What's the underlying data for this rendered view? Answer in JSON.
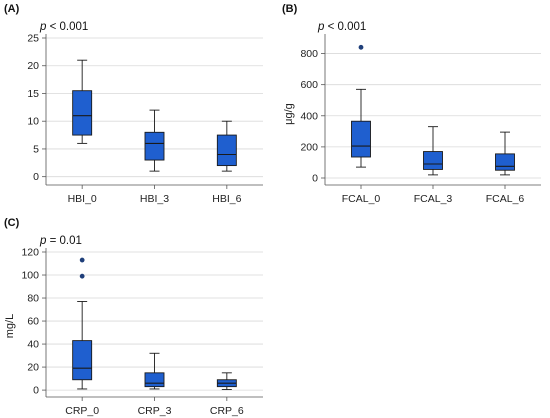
{
  "colors": {
    "box_fill": "#1f5fcf",
    "box_stroke": "#1a1a1a",
    "outlier": "#1f3f7a",
    "grid": "#d9d9d9",
    "axis": "#555555"
  },
  "chart_data": [
    {
      "type": "box",
      "panel_label": "(A)",
      "p_label": "p",
      "p_value": "< 0.001",
      "ylabel": "",
      "ylim": [
        -1.5,
        25
      ],
      "yticks": [
        0,
        5,
        10,
        15,
        20,
        25
      ],
      "grid": "horizontal",
      "categories": [
        "HBI_0",
        "HBI_3",
        "HBI_6"
      ],
      "boxes": [
        {
          "min": 6,
          "q1": 7.5,
          "median": 11,
          "q3": 15.5,
          "max": 21,
          "outliers": []
        },
        {
          "min": 1,
          "q1": 3,
          "median": 6,
          "q3": 8,
          "max": 12,
          "outliers": []
        },
        {
          "min": 1,
          "q1": 2,
          "median": 4,
          "q3": 7.5,
          "max": 10,
          "outliers": []
        }
      ]
    },
    {
      "type": "box",
      "panel_label": "(B)",
      "p_label": "p",
      "p_value": "< 0.001",
      "ylabel": "μg/g",
      "ylim": [
        -45,
        900
      ],
      "yticks": [
        0,
        200,
        400,
        600,
        800
      ],
      "grid": "horizontal",
      "categories": [
        "FCAL_0",
        "FCAL_3",
        "FCAL_6"
      ],
      "boxes": [
        {
          "min": 70,
          "q1": 135,
          "median": 205,
          "q3": 365,
          "max": 570,
          "outliers": [
            840
          ]
        },
        {
          "min": 20,
          "q1": 55,
          "median": 90,
          "q3": 170,
          "max": 330,
          "outliers": []
        },
        {
          "min": 20,
          "q1": 50,
          "median": 75,
          "q3": 155,
          "max": 295,
          "outliers": []
        }
      ]
    },
    {
      "type": "box",
      "panel_label": "(C)",
      "p_label": "p",
      "p_value": "= 0.01",
      "ylabel": "mg/L",
      "ylim": [
        -6,
        120
      ],
      "yticks": [
        0,
        20,
        40,
        60,
        80,
        100,
        120
      ],
      "grid": "horizontal",
      "categories": [
        "CRP_0",
        "CRP_3",
        "CRP_6"
      ],
      "boxes": [
        {
          "min": 1,
          "q1": 9,
          "median": 19,
          "q3": 43,
          "max": 77,
          "outliers": [
            99,
            113
          ]
        },
        {
          "min": 1,
          "q1": 3,
          "median": 6,
          "q3": 15,
          "max": 32,
          "outliers": []
        },
        {
          "min": 0.5,
          "q1": 3,
          "median": 6,
          "q3": 9,
          "max": 15,
          "outliers": []
        }
      ]
    }
  ]
}
